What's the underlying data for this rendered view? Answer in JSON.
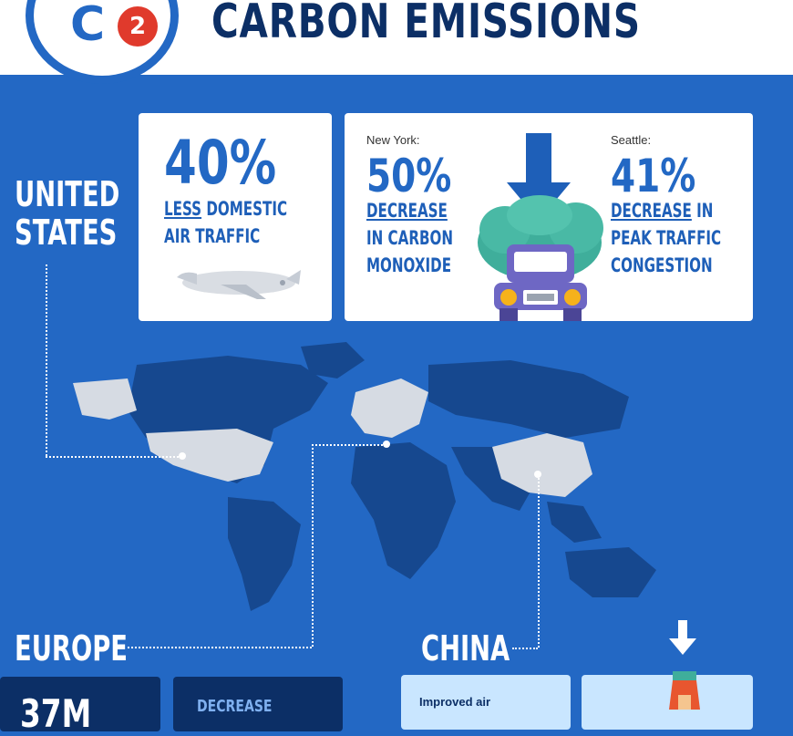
{
  "header": {
    "logo_text": "C",
    "logo_sub": "2",
    "title": "CARBON EMISSIONS"
  },
  "usa": {
    "label_line1": "UNITED",
    "label_line2": "STATES",
    "card1": {
      "value": "40%",
      "line1_u": "LESS",
      "line1_rest": " DOMESTIC",
      "line2": "AIR TRAFFIC"
    },
    "card2": {
      "ny_city": "New York:",
      "ny_value": "50%",
      "ny_line1": "DECREASE",
      "ny_line2": "IN CARBON",
      "ny_line3": "MONOXIDE",
      "se_city": "Seattle:",
      "se_value": "41%",
      "se_line1_u": "DECREASE",
      "se_line1_rest": " IN",
      "se_line2": "PEAK TRAFFIC",
      "se_line3": "CONGESTION"
    }
  },
  "europe": {
    "label": "EUROPE",
    "card1_value": "37M",
    "card2_text": "DECREASE"
  },
  "china": {
    "label": "CHINA",
    "card1_text": "Improved air"
  },
  "colors": {
    "background": "#2368c4",
    "dark_blue": "#0c2f66",
    "accent_red": "#e03a2c",
    "land_dark": "#16488f",
    "land_highlight": "#d6dbe3"
  },
  "icons": [
    "airplane-icon",
    "down-arrow-icon",
    "smog-cloud-icon",
    "car-icon",
    "factory-icon"
  ]
}
